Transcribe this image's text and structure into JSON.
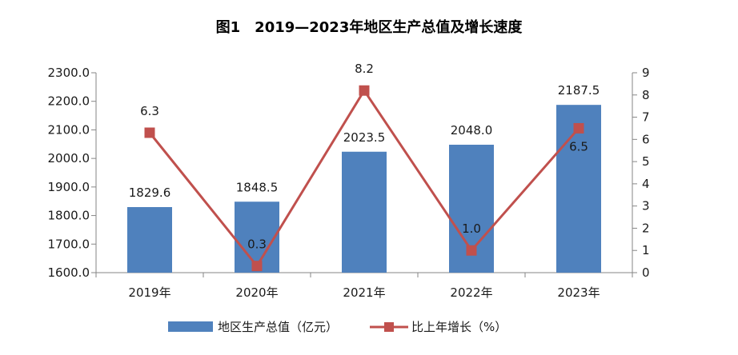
{
  "chart_data": {
    "type": "bar",
    "title": "图1　2019—2023年地区生产总值及增长速度",
    "categories": [
      "2019年",
      "2020年",
      "2021年",
      "2022年",
      "2023年"
    ],
    "series": [
      {
        "name": "地区生产总值（亿元）",
        "type": "bar",
        "axis": "left",
        "color": "#4f81bd",
        "values": [
          1829.6,
          1848.5,
          2023.5,
          2048.0,
          2187.5
        ],
        "labels": [
          "1829.6",
          "1848.5",
          "2023.5",
          "2048.0",
          "2187.5"
        ]
      },
      {
        "name": "比上年增长（%）",
        "type": "line",
        "axis": "right",
        "color": "#c0504d",
        "values": [
          6.3,
          0.3,
          8.2,
          1.0,
          6.5
        ],
        "labels": [
          "6.3",
          "0.3",
          "8.2",
          "1.0",
          "6.5"
        ]
      }
    ],
    "y_left": {
      "min": 1600,
      "max": 2300,
      "ticks": [
        "1600.0",
        "1700.0",
        "1800.0",
        "1900.0",
        "2000.0",
        "2100.0",
        "2200.0",
        "2300.0"
      ]
    },
    "y_right": {
      "min": 0,
      "max": 9,
      "ticks": [
        "0",
        "1",
        "2",
        "3",
        "4",
        "5",
        "6",
        "7",
        "8",
        "9"
      ]
    },
    "grid": false,
    "legend": "bottom"
  }
}
